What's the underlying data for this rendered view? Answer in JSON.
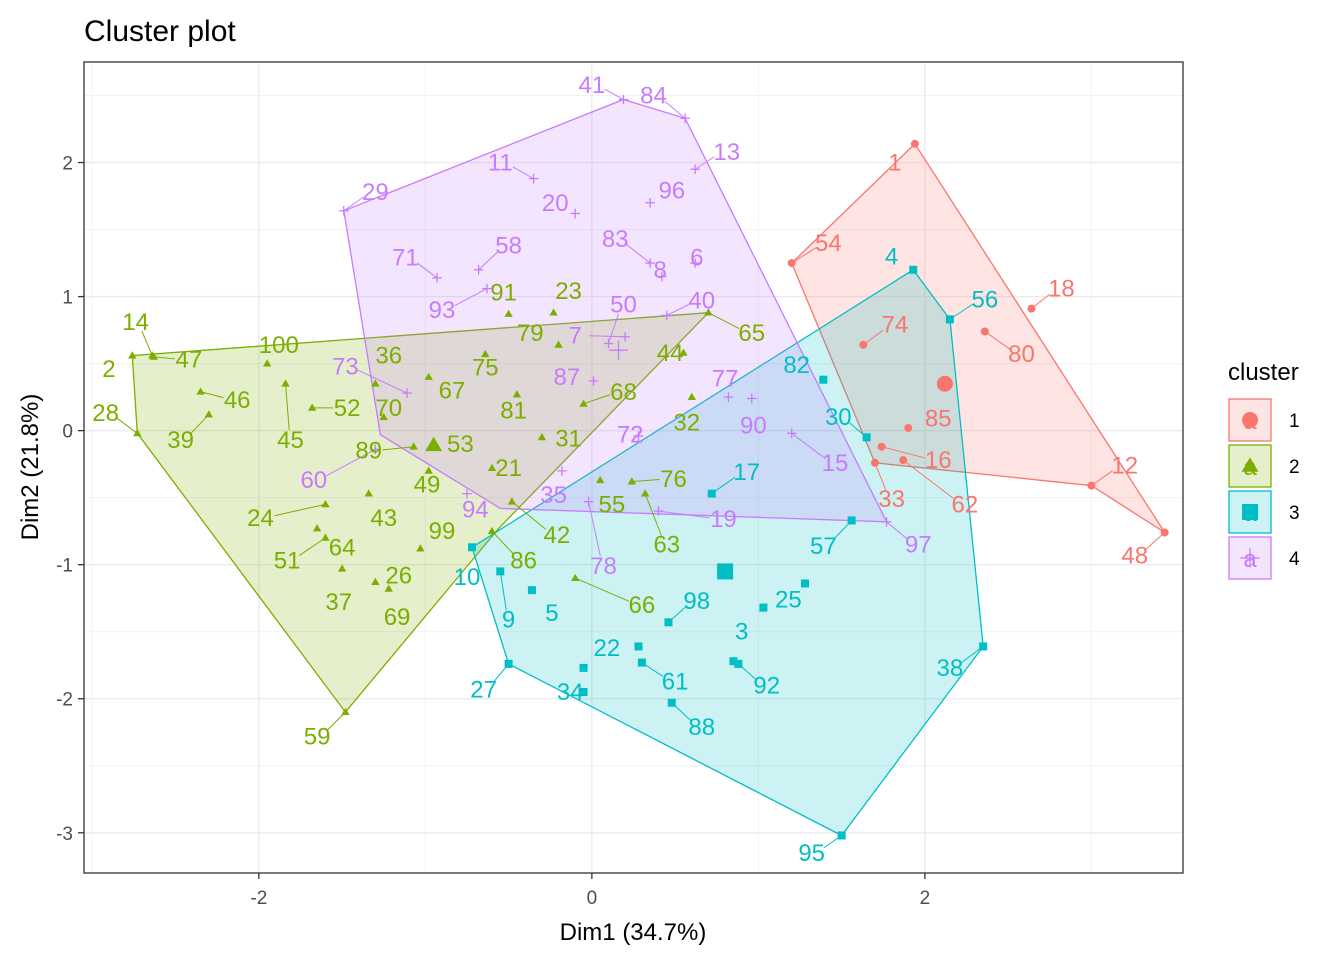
{
  "chart_data": {
    "type": "scatter",
    "title": "Cluster plot",
    "xlabel": "Dim1 (34.7%)",
    "ylabel": "Dim2 (21.8%)",
    "xlim": [
      -3.05,
      3.55
    ],
    "ylim": [
      -3.3,
      2.75
    ],
    "xticks": [
      -2,
      0,
      2
    ],
    "yticks": [
      -3,
      -2,
      -1,
      0,
      1,
      2
    ],
    "grid": true,
    "legend_title": "cluster",
    "legend_position": "right",
    "legend_glyph": "a",
    "series": [
      {
        "name": "1",
        "color": "#F8766D",
        "shape": "circle",
        "center": [
          2.12,
          0.35
        ],
        "hull": [
          [
            1.94,
            2.14
          ],
          [
            3.44,
            -0.76
          ],
          [
            3.0,
            -0.41
          ],
          [
            1.7,
            -0.24
          ],
          [
            1.2,
            1.25
          ]
        ],
        "points": [
          {
            "id": "1",
            "x": 1.94,
            "y": 2.14,
            "lx": 1.82,
            "ly": 2.0
          },
          {
            "id": "54",
            "x": 1.2,
            "y": 1.25,
            "lx": 1.42,
            "ly": 1.4
          },
          {
            "id": "18",
            "x": 2.64,
            "y": 0.91,
            "lx": 2.82,
            "ly": 1.06
          },
          {
            "id": "80",
            "x": 2.36,
            "y": 0.74,
            "lx": 2.58,
            "ly": 0.57
          },
          {
            "id": "74",
            "x": 1.63,
            "y": 0.64,
            "lx": 1.82,
            "ly": 0.79
          },
          {
            "id": "85",
            "x": 1.9,
            "y": 0.02,
            "lx": 2.08,
            "ly": 0.09
          },
          {
            "id": "16",
            "x": 1.74,
            "y": -0.12,
            "lx": 2.08,
            "ly": -0.22
          },
          {
            "id": "62",
            "x": 1.87,
            "y": -0.22,
            "lx": 2.24,
            "ly": -0.55
          },
          {
            "id": "12",
            "x": 3.0,
            "y": -0.41,
            "lx": 3.2,
            "ly": -0.26
          },
          {
            "id": "48",
            "x": 3.44,
            "y": -0.76,
            "lx": 3.26,
            "ly": -0.93
          },
          {
            "id": "33",
            "x": 1.7,
            "y": -0.24,
            "lx": 1.8,
            "ly": -0.51
          }
        ]
      },
      {
        "name": "2",
        "color": "#7CAE00",
        "shape": "triangle",
        "center": [
          -0.95,
          -0.11
        ],
        "hull": [
          [
            -2.76,
            0.56
          ],
          [
            -2.73,
            -0.02
          ],
          [
            -1.48,
            -2.1
          ],
          [
            -0.56,
            -0.73
          ],
          [
            0.7,
            0.88
          ]
        ],
        "points": [
          {
            "id": "14",
            "x": -2.64,
            "y": 0.56,
            "lx": -2.74,
            "ly": 0.81
          },
          {
            "id": "2",
            "x": -2.76,
            "y": 0.56,
            "lx": -2.9,
            "ly": 0.46
          },
          {
            "id": "47",
            "x": -2.63,
            "y": 0.55,
            "lx": -2.42,
            "ly": 0.53
          },
          {
            "id": "28",
            "x": -2.73,
            "y": -0.02,
            "lx": -2.92,
            "ly": 0.13
          },
          {
            "id": "39",
            "x": -2.3,
            "y": 0.12,
            "lx": -2.47,
            "ly": -0.07
          },
          {
            "id": "46",
            "x": -2.35,
            "y": 0.29,
            "lx": -2.13,
            "ly": 0.23
          },
          {
            "id": "100",
            "x": -1.95,
            "y": 0.5,
            "lx": -1.88,
            "ly": 0.64
          },
          {
            "id": "45",
            "x": -1.84,
            "y": 0.35,
            "lx": -1.81,
            "ly": -0.07
          },
          {
            "id": "52",
            "x": -1.68,
            "y": 0.17,
            "lx": -1.47,
            "ly": 0.17
          },
          {
            "id": "36",
            "x": -1.3,
            "y": 0.35,
            "lx": -1.22,
            "ly": 0.56
          },
          {
            "id": "70",
            "x": -1.25,
            "y": 0.1,
            "lx": -1.22,
            "ly": 0.17
          },
          {
            "id": "67",
            "x": -0.98,
            "y": 0.4,
            "lx": -0.84,
            "ly": 0.3
          },
          {
            "id": "75",
            "x": -0.64,
            "y": 0.57,
            "lx": -0.64,
            "ly": 0.47
          },
          {
            "id": "91",
            "x": -0.5,
            "y": 0.87,
            "lx": -0.53,
            "ly": 1.03
          },
          {
            "id": "23",
            "x": -0.23,
            "y": 0.88,
            "lx": -0.14,
            "ly": 1.04
          },
          {
            "id": "79",
            "x": -0.2,
            "y": 0.64,
            "lx": -0.37,
            "ly": 0.73
          },
          {
            "id": "81",
            "x": -0.45,
            "y": 0.27,
            "lx": -0.47,
            "ly": 0.15
          },
          {
            "id": "68",
            "x": -0.05,
            "y": 0.2,
            "lx": 0.19,
            "ly": 0.29
          },
          {
            "id": "65",
            "x": 0.7,
            "y": 0.88,
            "lx": 0.96,
            "ly": 0.73
          },
          {
            "id": "44",
            "x": 0.55,
            "y": 0.58,
            "lx": 0.47,
            "ly": 0.58
          },
          {
            "id": "32",
            "x": 0.6,
            "y": 0.25,
            "lx": 0.57,
            "ly": 0.06
          },
          {
            "id": "89",
            "x": -1.07,
            "y": -0.12,
            "lx": -1.34,
            "ly": -0.15
          },
          {
            "id": "53",
            "x": -0.95,
            "y": -0.1,
            "lx": -0.79,
            "ly": -0.1
          },
          {
            "id": "31",
            "x": -0.3,
            "y": -0.05,
            "lx": -0.14,
            "ly": -0.06
          },
          {
            "id": "49",
            "x": -0.98,
            "y": -0.3,
            "lx": -0.99,
            "ly": -0.4
          },
          {
            "id": "21",
            "x": -0.6,
            "y": -0.28,
            "lx": -0.5,
            "ly": -0.28
          },
          {
            "id": "76",
            "x": 0.24,
            "y": -0.38,
            "lx": 0.49,
            "ly": -0.36
          },
          {
            "id": "55",
            "x": 0.05,
            "y": -0.37,
            "lx": 0.12,
            "ly": -0.55
          },
          {
            "id": "63",
            "x": 0.32,
            "y": -0.47,
            "lx": 0.45,
            "ly": -0.85
          },
          {
            "id": "43",
            "x": -1.34,
            "y": -0.47,
            "lx": -1.25,
            "ly": -0.65
          },
          {
            "id": "24",
            "x": -1.6,
            "y": -0.55,
            "lx": -1.99,
            "ly": -0.65
          },
          {
            "id": "64",
            "x": -1.65,
            "y": -0.73,
            "lx": -1.5,
            "ly": -0.87
          },
          {
            "id": "51",
            "x": -1.6,
            "y": -0.8,
            "lx": -1.83,
            "ly": -0.97
          },
          {
            "id": "99",
            "x": -1.03,
            "y": -0.88,
            "lx": -0.9,
            "ly": -0.75
          },
          {
            "id": "42",
            "x": -0.48,
            "y": -0.53,
            "lx": -0.21,
            "ly": -0.78
          },
          {
            "id": "86",
            "x": -0.6,
            "y": -0.75,
            "lx": -0.41,
            "ly": -0.97
          },
          {
            "id": "26",
            "x": -1.3,
            "y": -1.13,
            "lx": -1.16,
            "ly": -1.08
          },
          {
            "id": "37",
            "x": -1.5,
            "y": -1.03,
            "lx": -1.52,
            "ly": -1.28
          },
          {
            "id": "69",
            "x": -1.22,
            "y": -1.18,
            "lx": -1.17,
            "ly": -1.39
          },
          {
            "id": "66",
            "x": -0.1,
            "y": -1.1,
            "lx": 0.3,
            "ly": -1.3
          },
          {
            "id": "59",
            "x": -1.48,
            "y": -2.1,
            "lx": -1.65,
            "ly": -2.28
          }
        ]
      },
      {
        "name": "3",
        "color": "#00BFC4",
        "shape": "square",
        "center": [
          0.8,
          -1.05
        ],
        "hull": [
          [
            1.93,
            1.2
          ],
          [
            2.15,
            0.83
          ],
          [
            2.35,
            -1.61
          ],
          [
            1.5,
            -3.02
          ],
          [
            -0.5,
            -1.74
          ],
          [
            -0.72,
            -0.87
          ]
        ],
        "points": [
          {
            "id": "4",
            "x": 1.93,
            "y": 1.2,
            "lx": 1.8,
            "ly": 1.3
          },
          {
            "id": "56",
            "x": 2.15,
            "y": 0.83,
            "lx": 2.36,
            "ly": 0.98
          },
          {
            "id": "82",
            "x": 1.39,
            "y": 0.38,
            "lx": 1.23,
            "ly": 0.49
          },
          {
            "id": "30",
            "x": 1.65,
            "y": -0.05,
            "lx": 1.48,
            "ly": 0.1
          },
          {
            "id": "17",
            "x": 0.72,
            "y": -0.47,
            "lx": 0.93,
            "ly": -0.31
          },
          {
            "id": "57",
            "x": 1.56,
            "y": -0.67,
            "lx": 1.39,
            "ly": -0.86
          },
          {
            "id": "10",
            "x": -0.72,
            "y": -0.87,
            "lx": -0.75,
            "ly": -1.09
          },
          {
            "id": "9",
            "x": -0.55,
            "y": -1.05,
            "lx": -0.5,
            "ly": -1.41
          },
          {
            "id": "5",
            "x": -0.36,
            "y": -1.19,
            "lx": -0.24,
            "ly": -1.36
          },
          {
            "id": "98",
            "x": 0.46,
            "y": -1.43,
            "lx": 0.63,
            "ly": -1.27
          },
          {
            "id": "25",
            "x": 1.03,
            "y": -1.32,
            "lx": 1.18,
            "ly": -1.26
          },
          {
            "id": "3",
            "x": 0.85,
            "y": -1.72,
            "lx": 0.9,
            "ly": -1.5
          },
          {
            "id": "22",
            "x": 0.28,
            "y": -1.61,
            "lx": 0.09,
            "ly": -1.62
          },
          {
            "id": "27",
            "x": -0.5,
            "y": -1.74,
            "lx": -0.65,
            "ly": -1.93
          },
          {
            "id": "34",
            "x": -0.05,
            "y": -1.95,
            "lx": -0.13,
            "ly": -1.95
          },
          {
            "id": "61",
            "x": 0.3,
            "y": -1.73,
            "lx": 0.5,
            "ly": -1.87
          },
          {
            "id": "92",
            "x": 0.88,
            "y": -1.74,
            "lx": 1.05,
            "ly": -1.9
          },
          {
            "id": "88",
            "x": 0.48,
            "y": -2.03,
            "lx": 0.66,
            "ly": -2.21
          },
          {
            "id": "38",
            "x": 2.35,
            "y": -1.61,
            "lx": 2.15,
            "ly": -1.77
          },
          {
            "id": "95",
            "x": 1.5,
            "y": -3.02,
            "lx": 1.32,
            "ly": -3.15
          },
          {
            "id": "a1",
            "x": -0.05,
            "y": -1.77,
            "lx": null,
            "ly": null
          },
          {
            "id": "a2",
            "x": 1.28,
            "y": -1.14,
            "lx": null,
            "ly": null
          }
        ]
      },
      {
        "name": "4",
        "color": "#C77CFF",
        "shape": "cross",
        "center": [
          0.16,
          0.6
        ],
        "hull": [
          [
            -1.49,
            1.64
          ],
          [
            0.19,
            2.47
          ],
          [
            0.56,
            2.33
          ],
          [
            1.77,
            -0.68
          ],
          [
            -0.55,
            -0.58
          ],
          [
            -1.27,
            -0.03
          ]
        ],
        "points": [
          {
            "id": "41",
            "x": 0.19,
            "y": 2.47,
            "lx": 0.0,
            "ly": 2.58
          },
          {
            "id": "84",
            "x": 0.56,
            "y": 2.33,
            "lx": 0.37,
            "ly": 2.5
          },
          {
            "id": "13",
            "x": 0.62,
            "y": 1.95,
            "lx": 0.81,
            "ly": 2.08
          },
          {
            "id": "11",
            "x": -0.35,
            "y": 1.88,
            "lx": -0.55,
            "ly": 2.0
          },
          {
            "id": "29",
            "x": -1.49,
            "y": 1.64,
            "lx": -1.3,
            "ly": 1.78
          },
          {
            "id": "20",
            "x": -0.1,
            "y": 1.62,
            "lx": -0.22,
            "ly": 1.7
          },
          {
            "id": "96",
            "x": 0.35,
            "y": 1.7,
            "lx": 0.48,
            "ly": 1.79
          },
          {
            "id": "83",
            "x": 0.35,
            "y": 1.25,
            "lx": 0.14,
            "ly": 1.43
          },
          {
            "id": "58",
            "x": -0.68,
            "y": 1.2,
            "lx": -0.5,
            "ly": 1.38
          },
          {
            "id": "71",
            "x": -0.93,
            "y": 1.14,
            "lx": -1.12,
            "ly": 1.29
          },
          {
            "id": "8",
            "x": 0.42,
            "y": 1.15,
            "lx": 0.41,
            "ly": 1.2
          },
          {
            "id": "6",
            "x": 0.62,
            "y": 1.25,
            "lx": 0.63,
            "ly": 1.29
          },
          {
            "id": "93",
            "x": -0.63,
            "y": 1.06,
            "lx": -0.9,
            "ly": 0.9
          },
          {
            "id": "50",
            "x": 0.1,
            "y": 0.65,
            "lx": 0.19,
            "ly": 0.94
          },
          {
            "id": "40",
            "x": 0.45,
            "y": 0.86,
            "lx": 0.66,
            "ly": 0.97
          },
          {
            "id": "7",
            "x": 0.2,
            "y": 0.7,
            "lx": -0.1,
            "ly": 0.71
          },
          {
            "id": "73",
            "x": -1.11,
            "y": 0.28,
            "lx": -1.48,
            "ly": 0.48
          },
          {
            "id": "87",
            "x": 0.01,
            "y": 0.37,
            "lx": -0.15,
            "ly": 0.4
          },
          {
            "id": "77",
            "x": 0.82,
            "y": 0.25,
            "lx": 0.8,
            "ly": 0.39
          },
          {
            "id": "90",
            "x": 0.96,
            "y": 0.24,
            "lx": 0.97,
            "ly": 0.04
          },
          {
            "id": "72",
            "x": 0.28,
            "y": -0.04,
            "lx": 0.23,
            "ly": -0.03
          },
          {
            "id": "15",
            "x": 1.2,
            "y": -0.02,
            "lx": 1.46,
            "ly": -0.24
          },
          {
            "id": "60",
            "x": -1.3,
            "y": -0.14,
            "lx": -1.67,
            "ly": -0.37
          },
          {
            "id": "35",
            "x": -0.18,
            "y": -0.3,
            "lx": -0.23,
            "ly": -0.48
          },
          {
            "id": "94",
            "x": -0.75,
            "y": -0.47,
            "lx": -0.7,
            "ly": -0.59
          },
          {
            "id": "19",
            "x": 0.4,
            "y": -0.6,
            "lx": 0.79,
            "ly": -0.66
          },
          {
            "id": "78",
            "x": -0.02,
            "y": -0.53,
            "lx": 0.07,
            "ly": -1.01
          },
          {
            "id": "97",
            "x": 1.77,
            "y": -0.68,
            "lx": 1.96,
            "ly": -0.85
          }
        ]
      }
    ]
  }
}
